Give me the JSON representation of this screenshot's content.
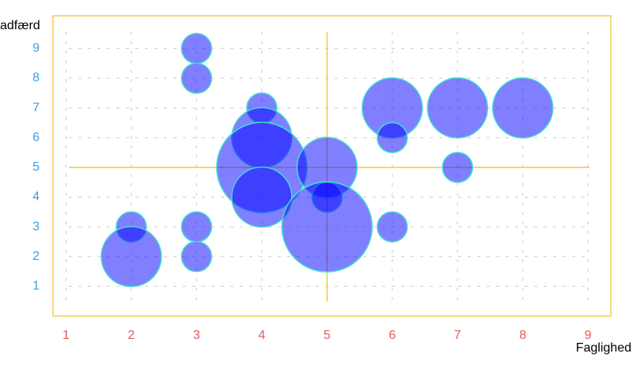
{
  "chart_data": {
    "type": "bubble",
    "x_label": "Faglighed",
    "y_label": "adfærd",
    "x": [
      3,
      3,
      4,
      4,
      4,
      4,
      5,
      5,
      5,
      6,
      6,
      6,
      7,
      7,
      8,
      2,
      2,
      3,
      3
    ],
    "y": [
      9,
      8,
      7,
      6,
      5,
      4,
      5,
      4,
      3,
      7,
      6,
      3,
      7,
      5,
      7,
      3,
      2,
      3,
      2
    ],
    "size": [
      1,
      1,
      1,
      2,
      3,
      2,
      2,
      1,
      3,
      2,
      1,
      1,
      2,
      1,
      2,
      1,
      2,
      1,
      1
    ],
    "color": "#0000ff",
    "edge_color": "#40e0d0",
    "xlim": [
      0.8,
      9.35
    ],
    "ylim": [
      0,
      10.1
    ],
    "xticks": [
      1,
      2,
      3,
      4,
      5,
      6,
      7,
      8,
      9
    ],
    "yticks": [
      1,
      2,
      3,
      4,
      5,
      6,
      7,
      8,
      9
    ],
    "reference_lines": {
      "x": 5,
      "y": 5,
      "color": "#f0c020"
    },
    "grid": true
  }
}
